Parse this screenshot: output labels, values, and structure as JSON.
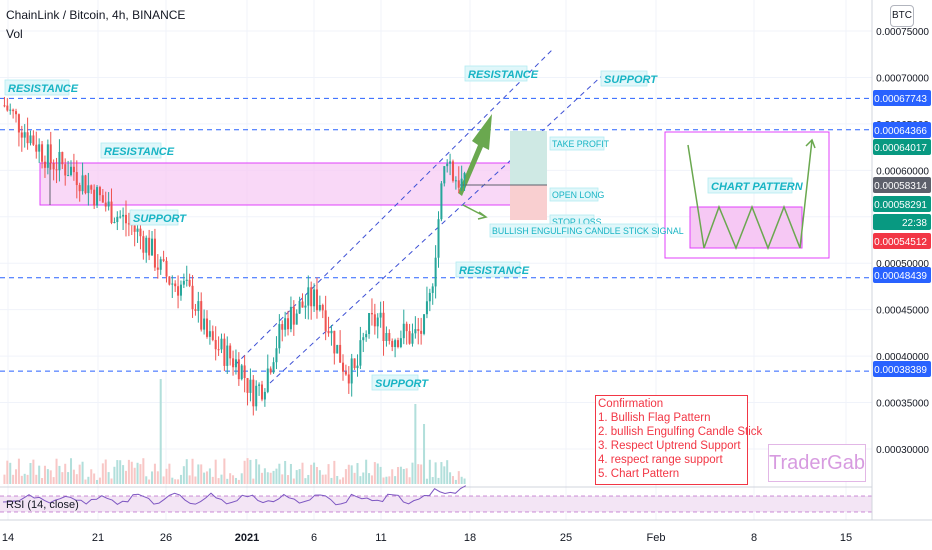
{
  "header": {
    "symbol_line": "ChainLink / Bitcoin, 4h, BINANCE",
    "volume_label": "Vol",
    "currency_badge": "BTC"
  },
  "chart_data": {
    "type": "candlestick",
    "title": "ChainLink / Bitcoin, 4h, BINANCE",
    "x_tick_labels": [
      "14",
      "21",
      "26",
      "2021",
      "6",
      "11",
      "18",
      "25",
      "Feb",
      "8",
      "15"
    ],
    "y_tick_labels": [
      "0.00075000",
      "0.00070000",
      "0.00065000",
      "0.00060000",
      "0.00055000",
      "0.00050000",
      "0.00045000",
      "0.00040000",
      "0.00035000",
      "0.00030000"
    ],
    "ylim": [
      0.00026,
      0.00078
    ],
    "price_path": [
      [
        0,
        0.00067
      ],
      [
        4,
        0.00064
      ],
      [
        8,
        0.00061
      ],
      [
        12,
        0.0006
      ],
      [
        15,
        0.00058
      ],
      [
        18,
        0.00056
      ],
      [
        22,
        0.00054
      ],
      [
        25,
        0.00052
      ],
      [
        27,
        0.000495
      ],
      [
        29,
        0.00048
      ],
      [
        31,
        0.000475
      ],
      [
        33,
        0.00046
      ],
      [
        35,
        0.00042
      ],
      [
        37,
        0.00041
      ],
      [
        39,
        0.0004
      ],
      [
        41,
        0.00039
      ],
      [
        43,
        0.00036
      ],
      [
        45,
        0.00037
      ],
      [
        47,
        0.00041
      ],
      [
        49,
        0.00044
      ],
      [
        51,
        0.00045
      ],
      [
        53,
        0.00046
      ],
      [
        55,
        0.00046
      ],
      [
        57,
        0.00042
      ],
      [
        59,
        0.00039
      ],
      [
        61,
        0.00038
      ],
      [
        63,
        0.00043
      ],
      [
        65,
        0.00044
      ],
      [
        67,
        0.00042
      ],
      [
        69,
        0.000425
      ],
      [
        71,
        0.00042
      ],
      [
        73,
        0.00043
      ],
      [
        74,
        0.00046
      ],
      [
        75,
        0.00052
      ],
      [
        76,
        0.00058
      ],
      [
        77,
        0.00062
      ],
      [
        78,
        0.000595
      ],
      [
        79,
        0.00059
      ],
      [
        80,
        0.000582
      ]
    ],
    "price_markers": [
      {
        "value": "0.00067743",
        "color": "#2962ff"
      },
      {
        "value": "0.00064366",
        "color": "#2962ff"
      },
      {
        "value": "0.00064017",
        "color": "#089981"
      },
      {
        "value": "0.00058314",
        "color": "#5d606b"
      },
      {
        "value": "0.00058291",
        "color": "#089981"
      },
      {
        "value": "22:38",
        "color": "#089981"
      },
      {
        "value": "0.00054512",
        "color": "#f23645"
      },
      {
        "value": "0.00048439",
        "color": "#2962ff"
      },
      {
        "value": "0.00038389",
        "color": "#2962ff"
      }
    ],
    "horizontal_levels": [
      "0.00067743",
      "0.00064366",
      "0.00048439",
      "0.00038389"
    ],
    "annotations": {
      "resistance": "RESISTANCE",
      "support": "SUPPORT",
      "take_profit": "TAKE PROFIT",
      "open_long": "OPEN LONG",
      "stop_loss": "STOP LOSS",
      "signal": "BULLISH ENGULFING CANDLE STICK SIGNAL",
      "chart_pattern": "CHART PATTERN"
    },
    "rsi_label": "RSI (14, close)",
    "colors": {
      "up": "#26a69a",
      "down": "#ef5350",
      "annotation_cyan": "#18b4c4",
      "range_box": "#e040fb",
      "trend_line": "#3f51d5",
      "arrow_green": "#6aa84f"
    }
  },
  "confirmation": {
    "title": "Confirmation",
    "items": [
      "1. Bullish Flag Pattern",
      "2. bullish Engulfing Candle Stick",
      "3. Respect Uptrend Support",
      "4. respect range support",
      "5. Chart Pattern"
    ]
  },
  "branding": {
    "watermark": "TraderGab"
  }
}
